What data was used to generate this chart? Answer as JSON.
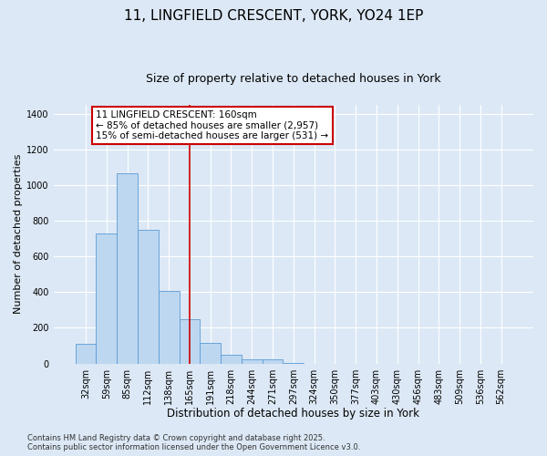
{
  "title_line1": "11, LINGFIELD CRESCENT, YORK, YO24 1EP",
  "title_line2": "Size of property relative to detached houses in York",
  "xlabel": "Distribution of detached houses by size in York",
  "ylabel": "Number of detached properties",
  "categories": [
    "32sqm",
    "59sqm",
    "85sqm",
    "112sqm",
    "138sqm",
    "165sqm",
    "191sqm",
    "218sqm",
    "244sqm",
    "271sqm",
    "297sqm",
    "324sqm",
    "350sqm",
    "377sqm",
    "403sqm",
    "430sqm",
    "456sqm",
    "483sqm",
    "509sqm",
    "536sqm",
    "562sqm"
  ],
  "values": [
    110,
    730,
    1065,
    750,
    405,
    250,
    115,
    50,
    25,
    25,
    5,
    0,
    0,
    0,
    0,
    0,
    0,
    0,
    0,
    0,
    0
  ],
  "bar_color": "#bdd7f0",
  "bar_edge_color": "#5b9bd5",
  "fig_bg_color": "#dce8f5",
  "ax_bg_color": "#dce8f5",
  "grid_color": "#ffffff",
  "vline_x_idx": 5,
  "vline_color": "#cc0000",
  "annotation_line1": "11 LINGFIELD CRESCENT: 160sqm",
  "annotation_line2": "← 85% of detached houses are smaller (2,957)",
  "annotation_line3": "15% of semi-detached houses are larger (531) →",
  "annotation_box_color": "#cc0000",
  "ylim": [
    0,
    1450
  ],
  "yticks": [
    0,
    200,
    400,
    600,
    800,
    1000,
    1200,
    1400
  ],
  "footnote": "Contains HM Land Registry data © Crown copyright and database right 2025.\nContains public sector information licensed under the Open Government Licence v3.0.",
  "title_fontsize": 11,
  "subtitle_fontsize": 9,
  "xlabel_fontsize": 8.5,
  "ylabel_fontsize": 8,
  "tick_fontsize": 7,
  "annotation_fontsize": 7.5,
  "footnote_fontsize": 6
}
